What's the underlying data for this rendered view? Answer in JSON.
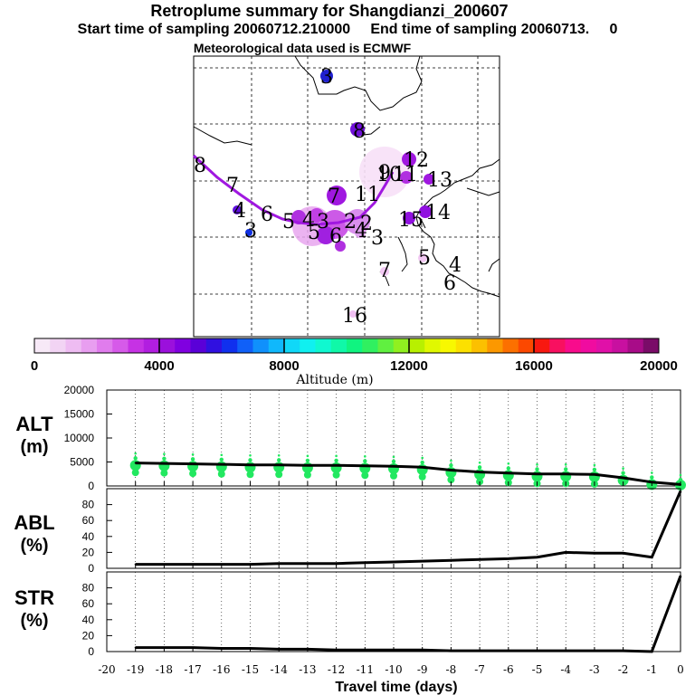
{
  "header": {
    "title": "Retroplume summary for Shangdianzi_200607",
    "sampling_line": "Start time of sampling 20060712.210000     End time of sampling 20060713.     0",
    "met_line": "Meteorological data used is ECMWF"
  },
  "colorbar": {
    "label": "Altitude (m)",
    "ticks": [
      "0",
      "4000",
      "8000",
      "12000",
      "16000",
      "20000"
    ],
    "colors": [
      "#f7e9f7",
      "#f2d4f4",
      "#eebcf2",
      "#e89ef0",
      "#e07ced",
      "#d65ae9",
      "#c632e4",
      "#b21ee0",
      "#9b10dc",
      "#8000e0",
      "#5a00d8",
      "#3010e0",
      "#1030ee",
      "#1060f8",
      "#1090fc",
      "#10b8fc",
      "#10d8f8",
      "#10f0f0",
      "#10f8d0",
      "#10f8a8",
      "#10f480",
      "#30f060",
      "#60f040",
      "#90f020",
      "#b8f000",
      "#e0f800",
      "#f8f800",
      "#fce000",
      "#fcc000",
      "#fc9800",
      "#fc7000",
      "#fc4800",
      "#f81810",
      "#f81060",
      "#f80c8c",
      "#f00ca0",
      "#e010a8",
      "#c810a0",
      "#a80c88",
      "#7a0c68"
    ]
  },
  "map_labels": [
    {
      "text": "8"
    },
    {
      "text": "7"
    },
    {
      "text": "6"
    },
    {
      "text": "5"
    },
    {
      "text": "4"
    },
    {
      "text": "4"
    },
    {
      "text": "3"
    },
    {
      "text": "3"
    },
    {
      "text": "2"
    },
    {
      "text": "2"
    },
    {
      "text": "5"
    },
    {
      "text": "6"
    },
    {
      "text": "4"
    },
    {
      "text": "3"
    },
    {
      "text": "7"
    },
    {
      "text": "11"
    },
    {
      "text": "10"
    },
    {
      "text": "12"
    },
    {
      "text": "11"
    },
    {
      "text": "13"
    },
    {
      "text": "14"
    },
    {
      "text": "15"
    },
    {
      "text": "9"
    },
    {
      "text": "8"
    },
    {
      "text": "7"
    },
    {
      "text": "5"
    },
    {
      "text": "4"
    },
    {
      "text": "6"
    },
    {
      "text": "16"
    },
    {
      "text": "3"
    }
  ],
  "chart_data": [
    {
      "type": "line",
      "title": "ALT",
      "ylabel": "ALT (m)",
      "xlabel": "Travel time (days)",
      "xlim": [
        -20,
        0
      ],
      "ylim": [
        0,
        20000
      ],
      "yticks": [
        "0",
        "5000",
        "10000",
        "15000",
        "20000"
      ],
      "x": [
        -19,
        -18,
        -17,
        -16,
        -15,
        -14,
        -13,
        -12,
        -11,
        -10,
        -9,
        -8,
        -7,
        -6,
        -5,
        -4,
        -3,
        -2,
        -1,
        0
      ],
      "values": [
        4800,
        4700,
        4600,
        4500,
        4400,
        4400,
        4300,
        4300,
        4200,
        4100,
        3900,
        3300,
        2900,
        2700,
        2500,
        2500,
        2400,
        1700,
        800,
        300
      ]
    },
    {
      "type": "line",
      "title": "ABL",
      "ylabel": "ABL (%)",
      "xlim": [
        -20,
        0
      ],
      "ylim": [
        0,
        100
      ],
      "yticks": [
        "0",
        "20",
        "40",
        "60",
        "80"
      ],
      "x": [
        -19,
        -18,
        -17,
        -16,
        -15,
        -14,
        -13,
        -12,
        -11,
        -10,
        -9,
        -8,
        -7,
        -6,
        -5,
        -4,
        -3,
        -2,
        -1,
        0
      ],
      "values": [
        5,
        5,
        5,
        5,
        5,
        6,
        6,
        6,
        7,
        8,
        9,
        10,
        11,
        12,
        14,
        20,
        19,
        19,
        14,
        97
      ]
    },
    {
      "type": "line",
      "title": "STR",
      "ylabel": "STR (%)",
      "xlim": [
        -20,
        0
      ],
      "ylim": [
        0,
        100
      ],
      "yticks": [
        "0",
        "20",
        "40",
        "60",
        "80"
      ],
      "xticks": [
        "-20",
        "-19",
        "-18",
        "-17",
        "-16",
        "-15",
        "-14",
        "-13",
        "-12",
        "-11",
        "-10",
        "-9",
        "-8",
        "-7",
        "-6",
        "-5",
        "-4",
        "-3",
        "-2",
        "-1",
        "0"
      ],
      "x": [
        -19,
        -18,
        -17,
        -16,
        -15,
        -14,
        -13,
        -12,
        -11,
        -10,
        -9,
        -8,
        -7,
        -6,
        -5,
        -4,
        -3,
        -2,
        -1,
        0
      ],
      "values": [
        5,
        5,
        5,
        4,
        4,
        3,
        3,
        2,
        2,
        2,
        2,
        1,
        1,
        1,
        1,
        1,
        1,
        1,
        0,
        95
      ]
    }
  ],
  "axis_labels": {
    "alt_top": "ALT",
    "alt_bottom": "(m)",
    "abl_top": "ABL",
    "abl_bottom": "(%)",
    "str_top": "STR",
    "str_bottom": "(%)",
    "xlabel": "Travel time (days)"
  }
}
